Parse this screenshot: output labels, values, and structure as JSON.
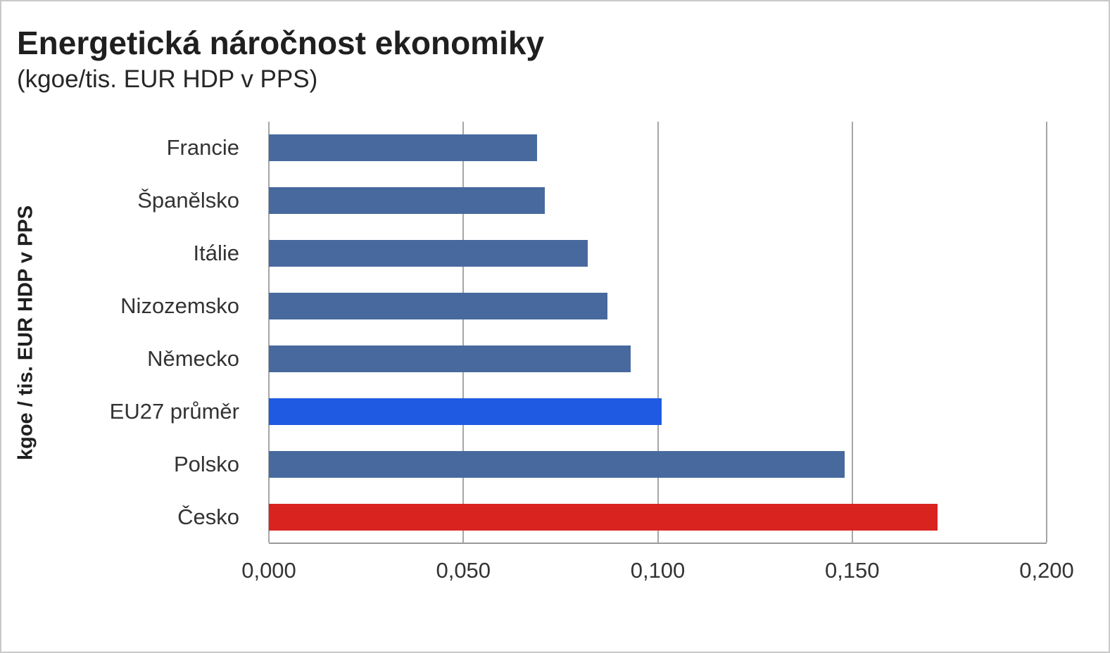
{
  "title": "Energetická náročnost ekonomiky",
  "subtitle": "(kgoe/tis. EUR HDP v PPS)",
  "chart_data": {
    "type": "bar",
    "orientation": "horizontal",
    "title": "Energetická náročnost ekonomiky",
    "subtitle": "(kgoe/tis. EUR HDP v PPS)",
    "ylabel": "kgoe / tis. EUR HDP v PPS",
    "xlabel": "",
    "categories": [
      "Francie",
      "Španělsko",
      "Itálie",
      "Nizozemsko",
      "Německo",
      "EU27 průměr",
      "Polsko",
      "Česko"
    ],
    "values": [
      0.069,
      0.071,
      0.082,
      0.087,
      0.093,
      0.101,
      0.148,
      0.172
    ],
    "bar_colors": [
      "#47699E",
      "#47699E",
      "#47699E",
      "#47699E",
      "#47699E",
      "#1E5BE2",
      "#47699E",
      "#D9231F"
    ],
    "xlim": [
      0,
      0.2
    ],
    "x_ticks": [
      "0,000",
      "0,050",
      "0,100",
      "0,150",
      "0,200"
    ],
    "grid": true,
    "legend": false
  }
}
